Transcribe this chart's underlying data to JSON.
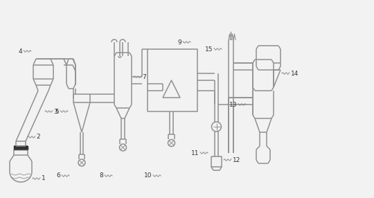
{
  "lc": "#909090",
  "lw": 1.1,
  "lc_dark": "#303030",
  "fs": 6.5,
  "bg": "#f2f2f2"
}
